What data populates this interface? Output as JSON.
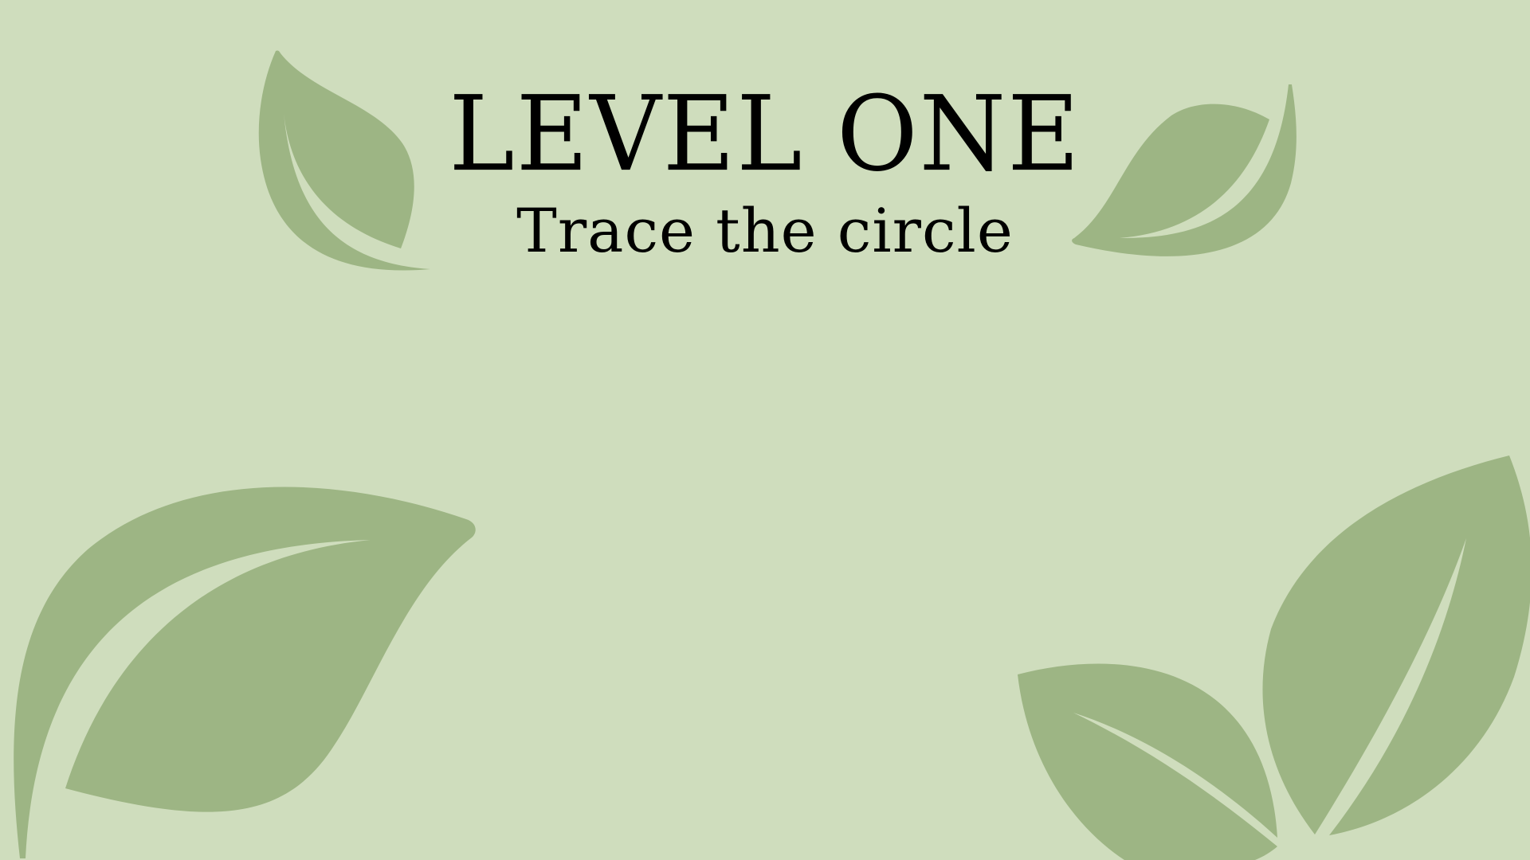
{
  "level": {
    "title": "LEVEL ONE",
    "instruction": "Trace the circle"
  },
  "theme": {
    "background": "#cfddbd",
    "leaf": "#9db584",
    "vein": "#cfddbd",
    "text": "#000000"
  },
  "decorations": [
    {
      "name": "leaf-icon",
      "position": "top-left"
    },
    {
      "name": "leaf-icon",
      "position": "top-right"
    },
    {
      "name": "leaf-icon",
      "position": "bottom-left"
    },
    {
      "name": "leaf-icon",
      "position": "bottom-right"
    },
    {
      "name": "leaf-icon",
      "position": "bottom-right"
    }
  ]
}
